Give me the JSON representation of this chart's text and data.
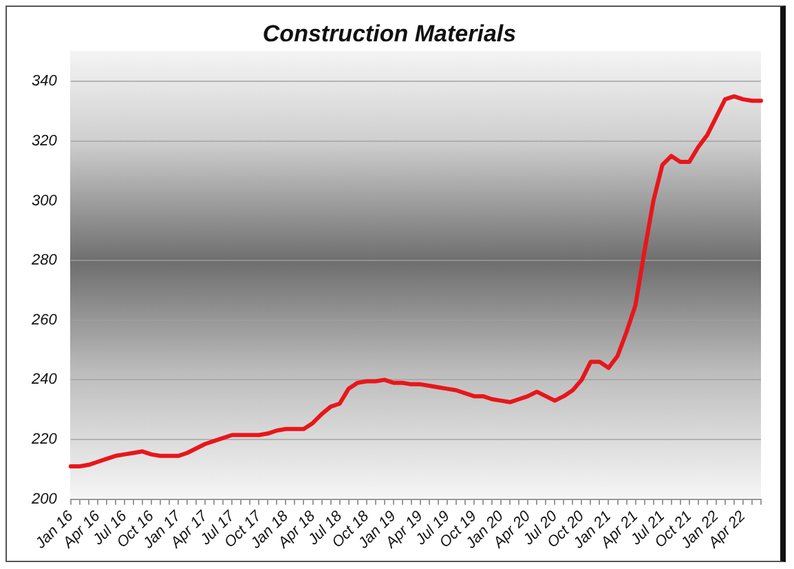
{
  "chart_data": {
    "type": "line",
    "title": "Construction Materials",
    "categories": [
      "Jan 16",
      null,
      null,
      "Apr 16",
      null,
      null,
      "Jul 16",
      null,
      null,
      "Oct 16",
      null,
      null,
      "Jan 17",
      null,
      null,
      "Apr 17",
      null,
      null,
      "Jul 17",
      null,
      null,
      "Oct 17",
      null,
      null,
      "Jan 18",
      null,
      null,
      "Apr 18",
      null,
      null,
      "Jul 18",
      null,
      null,
      "Oct 18",
      null,
      null,
      "Jan 19",
      null,
      null,
      "Apr 19",
      null,
      null,
      "Jul 19",
      null,
      null,
      "Oct 19",
      null,
      null,
      "Jan 20",
      null,
      null,
      "Apr 20",
      null,
      null,
      "Jul 20",
      null,
      null,
      "Oct 20",
      null,
      null,
      "Jan 21",
      null,
      null,
      "Apr 21",
      null,
      null,
      "Jul 21",
      null,
      null,
      "Oct 21",
      null,
      null,
      "Jan 22",
      null,
      null,
      "Apr 22",
      null,
      null
    ],
    "series": [
      {
        "color": "#e8161b",
        "values": [
          211,
          211,
          211.5,
          212.5,
          213.5,
          214.5,
          215,
          215.5,
          216,
          215,
          214.5,
          214.5,
          214.5,
          215.5,
          217,
          218.5,
          219.5,
          220.5,
          221.5,
          221.5,
          221.5,
          221.5,
          222,
          223,
          223.5,
          223.5,
          223.5,
          225.5,
          228.5,
          231,
          232,
          237,
          239,
          239.5,
          239.5,
          240,
          239,
          239,
          238.5,
          238.5,
          238,
          237.5,
          237,
          236.5,
          235.5,
          234.5,
          234.5,
          233.5,
          233,
          232.5,
          233.5,
          234.5,
          236,
          234.5,
          233,
          234.5,
          236.5,
          240,
          246,
          246,
          244,
          248,
          256,
          265,
          283,
          300,
          312,
          315,
          313,
          313,
          318,
          322,
          328,
          334,
          335,
          334,
          333.5,
          333.5
        ]
      }
    ],
    "ylim": [
      200,
      350
    ],
    "yticks": [
      200,
      220,
      240,
      260,
      280,
      300,
      320,
      340
    ],
    "grid": "y",
    "marker": "none",
    "line_style": "solid",
    "legend": false
  }
}
